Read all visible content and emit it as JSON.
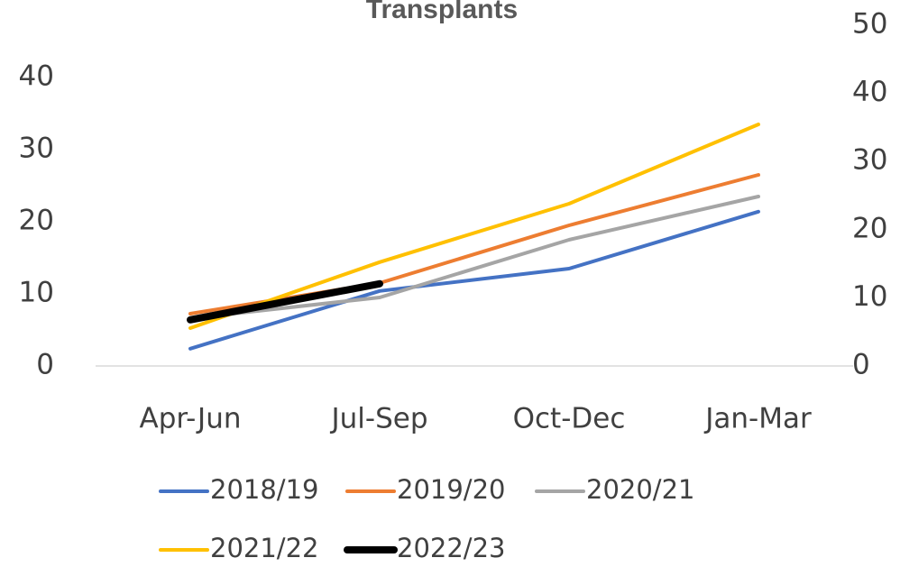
{
  "chart_data": {
    "type": "line",
    "title": "Transplants",
    "categories": [
      "Apr-Jun",
      "Jul-Sep",
      "Oct-Dec",
      "Jan-Mar"
    ],
    "series": [
      {
        "name": "2018/19",
        "color": "#4472c4",
        "values": [
          2.4,
          10.4,
          13.5,
          21.4
        ]
      },
      {
        "name": "2019/20",
        "color": "#ed7d31",
        "values": [
          7.25,
          11.5,
          19.5,
          26.5
        ]
      },
      {
        "name": "2020/21",
        "color": "#a5a5a5",
        "values": [
          6.6,
          9.5,
          17.5,
          23.5
        ]
      },
      {
        "name": "2021/22",
        "color": "#ffc000",
        "values": [
          5.25,
          14.4,
          22.5,
          33.5
        ]
      },
      {
        "name": "2022/23",
        "color": "#000000",
        "values": [
          6.4,
          11.4,
          null,
          null
        ]
      }
    ],
    "ylim": [
      0,
      47.25
    ],
    "yticks": [
      0,
      10,
      20,
      30,
      40
    ],
    "y2lim": [
      0,
      50
    ],
    "y2ticks": [
      0,
      10,
      20,
      30,
      40,
      50
    ]
  }
}
